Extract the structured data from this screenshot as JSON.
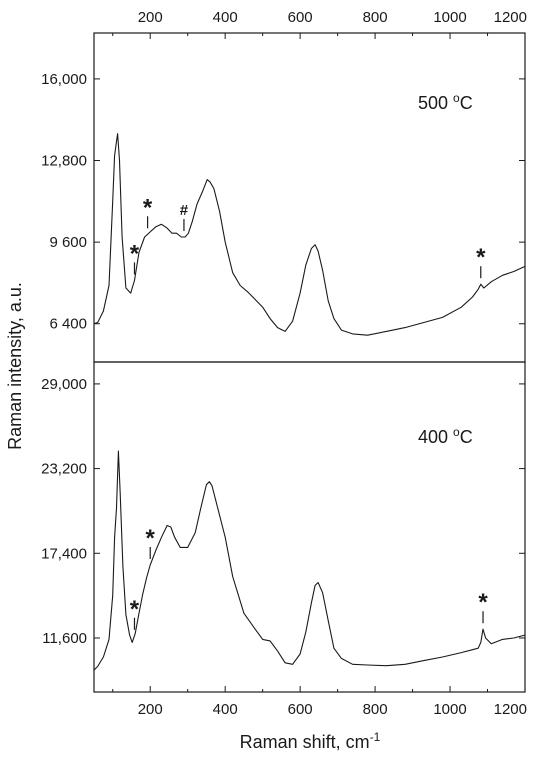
{
  "chart_data": {
    "type": "line",
    "xlabel": "Raman shift, cm",
    "xlabel_superscript": "-1",
    "ylabel": "Raman intensity, a.u.",
    "xlim": [
      50,
      1200
    ],
    "xticks": [
      200,
      400,
      600,
      800,
      1000,
      1200
    ],
    "xtick_labels": [
      "200",
      "400",
      "600",
      "800",
      "1000",
      "1200"
    ],
    "ticks_on_top_and_bottom": true,
    "grid": false,
    "panels": [
      {
        "label": "500 ",
        "label_unit": "C",
        "label_superscript": "o",
        "ylim": [
          4900,
          17800
        ],
        "yticks": [
          6400,
          9600,
          12800,
          16000
        ],
        "ytick_labels": [
          "6 400",
          "9 600",
          "12,800",
          "16,000"
        ],
        "series": {
          "x": [
            50,
            60,
            75,
            90,
            100,
            105,
            110,
            113,
            118,
            125,
            135,
            148,
            158,
            170,
            185,
            200,
            215,
            230,
            245,
            258,
            270,
            283,
            293,
            302,
            312,
            325,
            340,
            352,
            360,
            370,
            385,
            400,
            420,
            440,
            460,
            480,
            500,
            520,
            540,
            560,
            580,
            600,
            615,
            630,
            640,
            648,
            660,
            675,
            690,
            710,
            740,
            780,
            830,
            880,
            930,
            980,
            1030,
            1060,
            1075,
            1082,
            1090,
            1110,
            1140,
            1170,
            1200
          ],
          "y": [
            6400,
            6450,
            6900,
            7900,
            11200,
            13000,
            13550,
            13850,
            12800,
            9800,
            7800,
            7600,
            8100,
            9200,
            9800,
            10000,
            10200,
            10300,
            10150,
            9950,
            9950,
            9800,
            9800,
            9950,
            10400,
            11100,
            11600,
            12050,
            11950,
            11700,
            10800,
            9600,
            8400,
            7900,
            7650,
            7350,
            7050,
            6600,
            6250,
            6100,
            6500,
            7600,
            8700,
            9350,
            9500,
            9250,
            8500,
            7300,
            6600,
            6150,
            6000,
            5950,
            6100,
            6250,
            6450,
            6650,
            7050,
            7450,
            7750,
            7950,
            7800,
            8050,
            8300,
            8450,
            8650
          ]
        },
        "annotations": [
          {
            "symbol": "*",
            "x": 158
          },
          {
            "symbol": "*",
            "x": 193
          },
          {
            "symbol": "#",
            "x": 290
          },
          {
            "symbol": "*",
            "x": 1082
          }
        ]
      },
      {
        "label": "400 ",
        "label_unit": "C",
        "label_superscript": "o",
        "ylim": [
          7900,
          30500
        ],
        "yticks": [
          11600,
          17400,
          23200,
          29000
        ],
        "ytick_labels": [
          "11,600",
          "17,400",
          "23,200",
          "29,000"
        ],
        "series": {
          "x": [
            50,
            60,
            75,
            90,
            100,
            105,
            110,
            115,
            120,
            127,
            135,
            145,
            152,
            160,
            170,
            180,
            190,
            200,
            215,
            230,
            245,
            255,
            265,
            280,
            300,
            320,
            335,
            350,
            358,
            365,
            380,
            400,
            420,
            450,
            480,
            500,
            520,
            540,
            560,
            580,
            600,
            615,
            630,
            640,
            648,
            660,
            675,
            690,
            710,
            740,
            780,
            830,
            880,
            930,
            980,
            1030,
            1060,
            1075,
            1082,
            1088,
            1095,
            1110,
            1140,
            1170,
            1200
          ],
          "y": [
            9400,
            9650,
            10300,
            11500,
            14500,
            18500,
            20500,
            24400,
            21500,
            16500,
            13200,
            11800,
            11300,
            11900,
            13300,
            14600,
            15700,
            16600,
            17600,
            18500,
            19300,
            19200,
            18500,
            17800,
            17800,
            18800,
            20500,
            22100,
            22300,
            22000,
            20500,
            18500,
            15800,
            13300,
            12200,
            11500,
            11400,
            10700,
            9900,
            9800,
            10500,
            12000,
            14000,
            15200,
            15400,
            14700,
            12800,
            10900,
            10200,
            9800,
            9750,
            9700,
            9800,
            10050,
            10300,
            10600,
            10800,
            10900,
            11300,
            12200,
            11600,
            11200,
            11500,
            11600,
            11800
          ]
        },
        "annotations": [
          {
            "symbol": "*",
            "x": 158
          },
          {
            "symbol": "*",
            "x": 200
          },
          {
            "symbol": "*",
            "x": 1088
          }
        ]
      }
    ]
  }
}
